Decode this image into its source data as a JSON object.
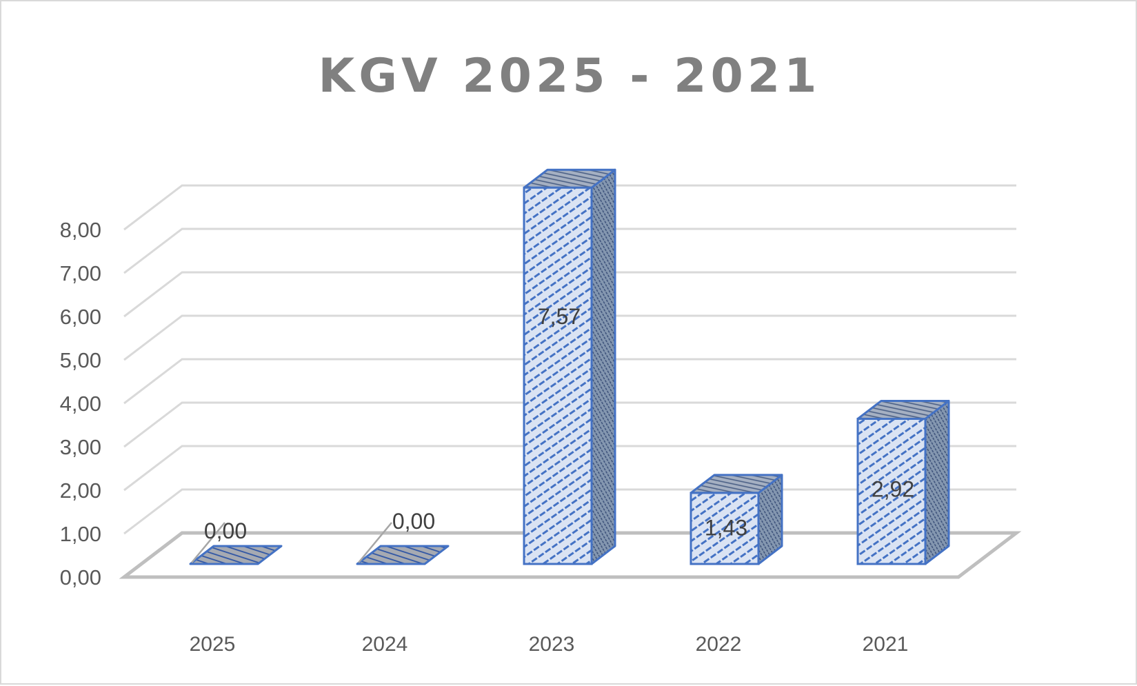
{
  "chart_data": {
    "type": "bar",
    "style": "3d-column",
    "title": "KGV 2025 - 2021",
    "xlabel": "",
    "ylabel": "",
    "categories": [
      "2025",
      "2024",
      "2023",
      "2022",
      "2021"
    ],
    "values": [
      0.0,
      0.0,
      7.57,
      1.43,
      2.92
    ],
    "value_labels": [
      "0,00",
      "0,00",
      "7,57",
      "1,43",
      "2,92"
    ],
    "ylim": [
      0,
      8
    ],
    "yticks": [
      "0,00",
      "1,00",
      "2,00",
      "3,00",
      "4,00",
      "5,00",
      "6,00",
      "7,00",
      "8,00"
    ],
    "grid": true,
    "legend": "none",
    "colors": {
      "bar_border": "#4472c4",
      "bar_front_fill": "#dae3f3",
      "bar_top_side_fill": "#8497b0",
      "gridline": "#d9d9d9",
      "floor": "#bfbfbf",
      "title": "#808080",
      "tick_text": "#595959"
    }
  }
}
